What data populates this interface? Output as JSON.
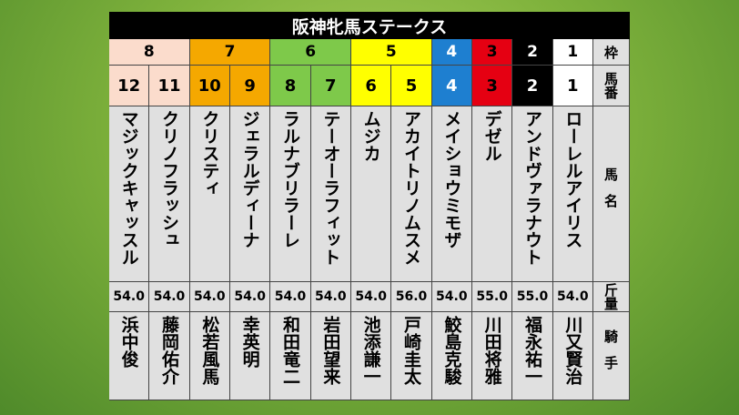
{
  "header": {
    "title": "阪神牝馬ステークス"
  },
  "labels": {
    "frame": "枠",
    "number": "馬番",
    "name": "馬名",
    "weight": "斤量",
    "jockey": "騎手"
  },
  "frames": [
    {
      "label": "8",
      "color": "#fbdccc",
      "text_color": "#000000"
    },
    {
      "label": "7",
      "color": "#f5a800",
      "text_color": "#000000"
    },
    {
      "label": "6",
      "color": "#7ec94a",
      "text_color": "#000000"
    },
    {
      "label": "5",
      "color": "#ffff00",
      "text_color": "#000000"
    },
    {
      "label": "4",
      "color": "#1e7fd0",
      "text_color": "#ffffff"
    },
    {
      "label": "3",
      "color": "#e50012",
      "text_color": "#000000"
    },
    {
      "label": "2",
      "color": "#000000",
      "text_color": "#ffffff"
    },
    {
      "label": "1",
      "color": "#ffffff",
      "text_color": "#000000"
    }
  ],
  "horses": [
    {
      "frame": 0,
      "number": "12",
      "name": "マジックキャッスル",
      "weight": "54.0",
      "jockey": "浜中俊"
    },
    {
      "frame": 0,
      "number": "11",
      "name": "クリノフラッシュ",
      "weight": "54.0",
      "jockey": "藤岡佑介"
    },
    {
      "frame": 1,
      "number": "10",
      "name": "クリスティ",
      "weight": "54.0",
      "jockey": "松若風馬"
    },
    {
      "frame": 1,
      "number": "9",
      "name": "ジェラルディーナ",
      "weight": "54.0",
      "jockey": "幸英明"
    },
    {
      "frame": 2,
      "number": "8",
      "name": "ラルナブリラーレ",
      "weight": "54.0",
      "jockey": "和田竜二"
    },
    {
      "frame": 2,
      "number": "7",
      "name": "テーオーラフィット",
      "weight": "54.0",
      "jockey": "岩田望来"
    },
    {
      "frame": 3,
      "number": "6",
      "name": "ムジカ",
      "weight": "54.0",
      "jockey": "池添謙一"
    },
    {
      "frame": 3,
      "number": "5",
      "name": "アカイトリノムスメ",
      "weight": "56.0",
      "jockey": "戸崎圭太"
    },
    {
      "frame": 4,
      "number": "4",
      "name": "メイショウミモザ",
      "weight": "54.0",
      "jockey": "鮫島克駿"
    },
    {
      "frame": 5,
      "number": "3",
      "name": "デゼル",
      "weight": "55.0",
      "jockey": "川田将雅"
    },
    {
      "frame": 6,
      "number": "2",
      "name": "アンドヴァラナウト",
      "weight": "55.0",
      "jockey": "福永祐一"
    },
    {
      "frame": 7,
      "number": "1",
      "name": "ローレルアイリス",
      "weight": "54.0",
      "jockey": "川又賢治"
    }
  ]
}
